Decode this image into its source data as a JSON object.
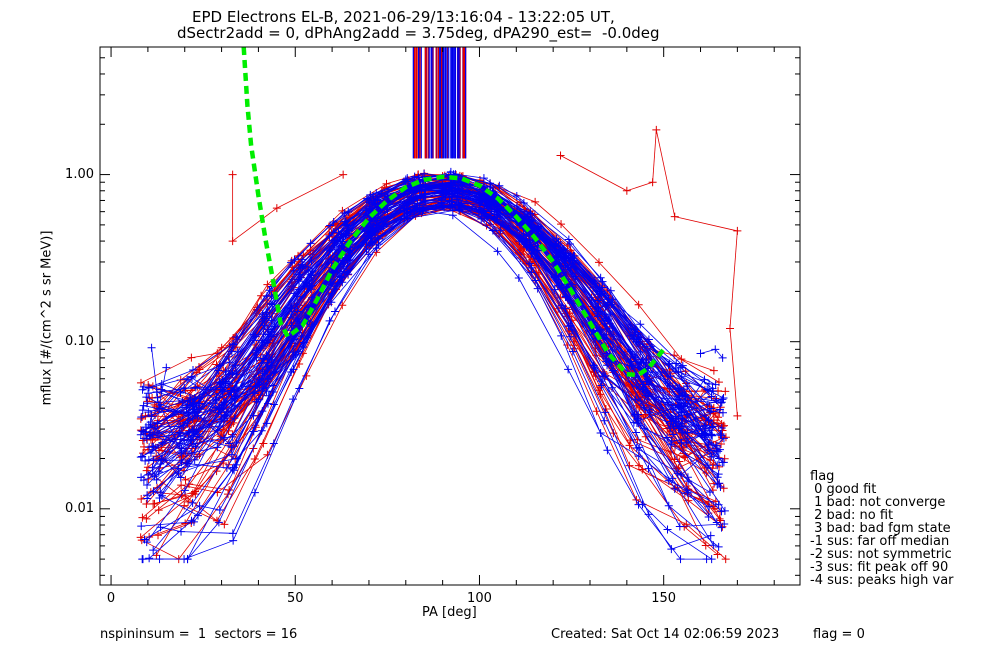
{
  "title": [
    "EPD Electrons EL-B, 2021-06-29/13:16:04 - 13:22:05 UT,",
    "dSectr2add = 0, dPhAng2add = 3.75deg, dPA290_est=  -0.0deg"
  ],
  "footer": {
    "left": "nspininsum =  1  sectors = 16",
    "created": "Created: Sat Oct 14 02:06:59 2023",
    "flag": "flag = 0"
  },
  "legend": {
    "title": "flag",
    "items": [
      " 0 good fit",
      " 1 bad: not converge",
      " 2 bad: no fit",
      " 3 bad: bad fgm state",
      "-1 sus: far off median",
      "-2 sus: not symmetric",
      "-3 sus: fit peak off 90",
      "-4 sus: peaks high var"
    ]
  },
  "chart_data": {
    "type": "line",
    "xlabel": "PA [deg]",
    "ylabel": "mflux [#/(cm^2 s sr MeV)]",
    "xlim": [
      -3,
      187
    ],
    "ylim": [
      0.0035,
      5.8
    ],
    "yscale": "log",
    "xticks": [
      0,
      50,
      100,
      150
    ],
    "yticks": [
      0.01,
      0.1,
      1.0
    ],
    "ytick_labels": [
      "0.01",
      "0.10",
      "1.00"
    ],
    "colors": {
      "red": "#e00000",
      "blue": "#0000ee",
      "fit": "#00ee00"
    },
    "series": [
      {
        "color": "red",
        "n": 60
      },
      {
        "color": "blue",
        "n": 70
      }
    ],
    "vlines": {
      "x_range": [
        82,
        97
      ],
      "y_from": 1.25,
      "y_to": 5.8
    },
    "fit_curve": {
      "color": "fit",
      "points": [
        [
          36,
          5.8
        ],
        [
          37,
          2.6
        ],
        [
          38,
          1.5
        ],
        [
          40,
          0.75
        ],
        [
          42,
          0.4
        ],
        [
          44,
          0.23
        ],
        [
          46,
          0.13
        ],
        [
          48,
          0.107
        ],
        [
          52,
          0.125
        ],
        [
          56,
          0.18
        ],
        [
          60,
          0.27
        ],
        [
          65,
          0.4
        ],
        [
          70,
          0.55
        ],
        [
          75,
          0.7
        ],
        [
          80,
          0.84
        ],
        [
          85,
          0.93
        ],
        [
          90,
          0.97
        ],
        [
          95,
          0.95
        ],
        [
          100,
          0.86
        ],
        [
          105,
          0.72
        ],
        [
          110,
          0.56
        ],
        [
          115,
          0.42
        ],
        [
          120,
          0.3
        ],
        [
          125,
          0.2
        ],
        [
          130,
          0.13
        ],
        [
          135,
          0.085
        ],
        [
          140,
          0.064
        ],
        [
          143,
          0.063
        ],
        [
          146,
          0.07
        ],
        [
          150,
          0.09
        ]
      ]
    },
    "outliers": {
      "red": [
        [
          33,
          1.0
        ],
        [
          33,
          0.4
        ],
        [
          45,
          0.63
        ],
        [
          63,
          1.0
        ],
        [
          122,
          1.3
        ],
        [
          140,
          0.8
        ],
        [
          147,
          0.9
        ],
        [
          148,
          1.85
        ],
        [
          153,
          0.56
        ],
        [
          170,
          0.46
        ],
        [
          168,
          0.12
        ],
        [
          170,
          0.036
        ]
      ],
      "blue": [
        [
          11,
          0.092
        ],
        [
          13,
          0.04
        ],
        [
          15,
          0.07
        ],
        [
          160,
          0.085
        ],
        [
          164,
          0.09
        ],
        [
          166,
          0.08
        ]
      ]
    }
  }
}
